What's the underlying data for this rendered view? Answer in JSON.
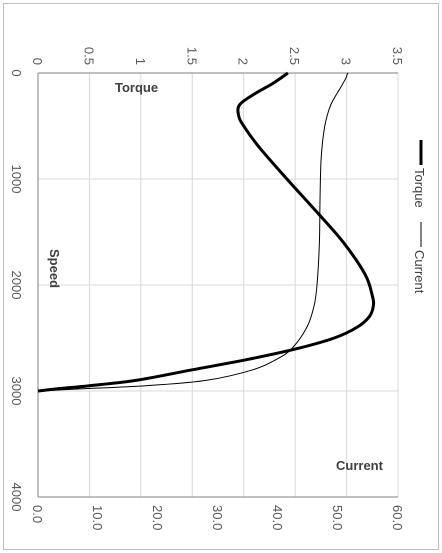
{
  "chart_data": {
    "type": "line",
    "orientation": "rotated-90-clockwise",
    "title": "",
    "xlabel": "Speed",
    "xlim": [
      0,
      4000
    ],
    "x_ticks": [
      "0",
      "1000",
      "2000",
      "3000",
      "4000"
    ],
    "grid": true,
    "legend_placement": "right",
    "axes": {
      "torque": {
        "label": "Torque",
        "lim": [
          0,
          3.5
        ],
        "ticks": [
          "0",
          "0.5",
          "1",
          "1.5",
          "2",
          "2.5",
          "3",
          "3.5"
        ]
      },
      "current": {
        "label": "Current",
        "lim": [
          0,
          60
        ],
        "ticks": [
          "0.0",
          "10.0",
          "20.0",
          "30.0",
          "40.0",
          "50.0",
          "60.0"
        ]
      }
    },
    "series": [
      {
        "name": "Torque",
        "axis": "torque",
        "color": "#000000",
        "x": [
          0,
          100,
          200,
          300,
          400,
          500,
          700,
          1000,
          1300,
          1600,
          1900,
          2100,
          2200,
          2300,
          2400,
          2500,
          2600,
          2700,
          2800,
          2900,
          2950,
          2980,
          3000
        ],
        "values": [
          2.43,
          2.28,
          2.1,
          1.96,
          1.95,
          2.0,
          2.15,
          2.42,
          2.7,
          2.97,
          3.18,
          3.25,
          3.26,
          3.22,
          3.1,
          2.88,
          2.52,
          2.05,
          1.5,
          0.95,
          0.5,
          0.18,
          0.0
        ]
      },
      {
        "name": "Current",
        "axis": "current",
        "color": "#000000",
        "x": [
          0,
          50,
          150,
          300,
          500,
          800,
          1200,
          1600,
          2000,
          2200,
          2400,
          2600,
          2700,
          2800,
          2900,
          2950,
          2980,
          3000
        ],
        "values": [
          51.6,
          51.3,
          50.3,
          48.8,
          47.8,
          47.2,
          47.0,
          46.9,
          46.5,
          46.0,
          44.8,
          42.3,
          39.8,
          35.8,
          28.0,
          18.0,
          7.0,
          0.0
        ]
      }
    ]
  }
}
